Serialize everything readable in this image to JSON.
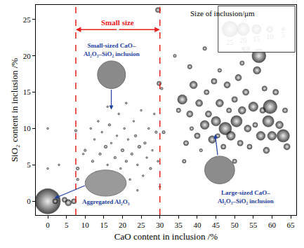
{
  "chart_data": {
    "type": "scatter",
    "marker": "bubble",
    "color": "#000000",
    "grid": false,
    "x_label": "CaO content in inclusion /%",
    "y_label": "SiO₂ content in inclusion /%",
    "xlim": [
      -3.2,
      66.5
    ],
    "xticks": [
      0,
      5,
      10,
      15,
      20,
      25,
      30,
      35,
      40,
      45,
      50,
      55,
      60,
      65
    ],
    "ylim": [
      -1.9,
      27
    ],
    "yticks": [
      0,
      5,
      10,
      15,
      20,
      25
    ],
    "x": [
      0,
      0,
      0,
      2,
      4.5,
      5.5,
      7,
      3,
      8,
      8,
      7.5,
      9.5,
      10,
      11,
      11.5,
      12,
      12.5,
      13,
      13.5,
      14,
      14.5,
      15,
      15.5,
      16,
      16.5,
      17,
      17.5,
      18,
      18.5,
      19,
      19.5,
      20,
      20.5,
      21,
      21.5,
      22,
      22.5,
      23,
      23.5,
      24,
      24.5,
      25,
      25.5,
      26,
      26.5,
      27,
      27.5,
      28,
      29,
      29.5,
      28.5,
      16,
      21,
      13,
      24,
      29.5,
      29.8,
      30.5,
      31,
      30,
      35,
      36,
      37,
      38,
      38.5,
      39,
      40,
      40.5,
      41,
      42,
      42.5,
      43,
      44,
      44.5,
      45,
      45.5,
      46,
      47,
      47.5,
      48,
      48.5,
      49,
      50,
      50.5,
      51,
      51.5,
      52,
      53,
      53,
      53.5,
      54,
      55,
      55.5,
      56,
      57,
      57.5,
      58,
      58.5,
      59,
      59.5,
      60,
      61,
      62,
      63,
      64,
      34,
      36.5,
      44,
      50,
      56.5,
      42,
      63.5,
      38,
      46,
      52
    ],
    "values": [
      0,
      10,
      4.5,
      0,
      0.2,
      -0.2,
      0,
      5,
      3,
      4.5,
      9.7,
      6.5,
      7,
      2,
      10,
      5.5,
      8.5,
      4,
      11,
      6.5,
      9.5,
      3,
      7.5,
      5,
      10.5,
      8,
      3.5,
      6,
      9,
      12,
      4.5,
      7,
      10,
      5.5,
      8.5,
      3,
      6.5,
      11,
      9,
      5,
      7.5,
      12.5,
      3.5,
      8,
      6,
      10,
      4.5,
      7,
      9.5,
      5.5,
      12,
      13,
      13.5,
      1.5,
      1.5,
      26.3,
      16.2,
      15.5,
      9.5,
      2,
      12.5,
      14,
      8,
      12,
      10,
      16,
      9,
      13.5,
      7,
      10.5,
      15,
      12,
      8.5,
      16.5,
      11,
      9,
      13.5,
      7.5,
      10,
      16,
      12.5,
      9,
      14,
      11,
      17,
      8,
      12.5,
      15,
      21,
      10,
      7.5,
      13,
      10.5,
      18,
      9,
      12.5,
      15.5,
      7,
      11,
      13,
      9,
      15,
      10.5,
      9,
      7.5,
      20,
      5.5,
      5,
      5.5,
      20,
      21,
      12.5,
      18.5,
      18,
      19
    ],
    "sizes": [
      40,
      3,
      3,
      8,
      8,
      10,
      8,
      3,
      4,
      5,
      4,
      3,
      4,
      3,
      3,
      4,
      3,
      3,
      3,
      4,
      3,
      3,
      5,
      3,
      4,
      3,
      4,
      4,
      3,
      3,
      3,
      5,
      3,
      4,
      3,
      3,
      4,
      3,
      4,
      3,
      5,
      3,
      3,
      4,
      3,
      3,
      4,
      3,
      4,
      3,
      3,
      3,
      3,
      3,
      3,
      8,
      7,
      4,
      5,
      3,
      7,
      15,
      8,
      10,
      6,
      12,
      9,
      11,
      5,
      14,
      8,
      10,
      12,
      9,
      15,
      7,
      12,
      8,
      20,
      10,
      8,
      14,
      9,
      18,
      10,
      9,
      12,
      10,
      12,
      11,
      8,
      15,
      8,
      12,
      14,
      9,
      8,
      10,
      18,
      22,
      14,
      9,
      12,
      20,
      10,
      5,
      6,
      6,
      7,
      22,
      6,
      8,
      7,
      6,
      7
    ],
    "size_legend": {
      "title": "Size of inclusion/μm",
      "values": [
        25,
        20,
        15,
        10,
        5
      ]
    },
    "reference_lines": {
      "x": [
        7.5,
        30
      ],
      "color": "#e8201e",
      "line_style": "dashed"
    },
    "region_label": {
      "text": "Small size",
      "color": "#e8201e"
    },
    "annotations": [
      {
        "text": "Small-sized CaO–\nAl₂O₃–SiO₂ inclusion",
        "color": "#1f3f9f"
      },
      {
        "text": "Aggregated Al₂O₃",
        "color": "#1f3f9f"
      },
      {
        "text": "Large-sized CaO–\nAl₂O₃–SiO₂ inclusion",
        "color": "#1f3f9f"
      }
    ]
  }
}
